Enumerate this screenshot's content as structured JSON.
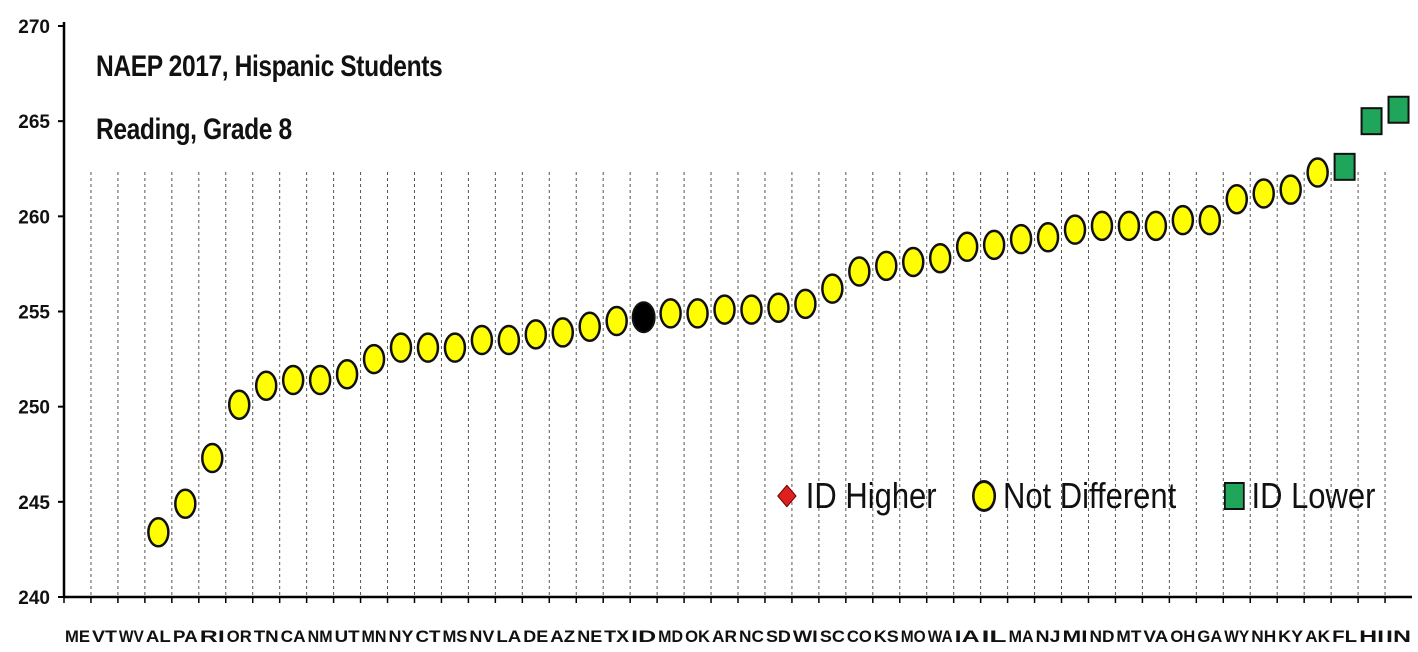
{
  "chart_data": {
    "type": "scatter",
    "title": "NAEP 2017, Hispanic Students",
    "subtitle": "Reading, Grade 8",
    "ylim": [
      240,
      270
    ],
    "y_ticks": [
      240,
      245,
      250,
      255,
      260,
      265,
      270
    ],
    "grid": "vertical dashed",
    "legend_placement": "bottom-right",
    "categories": [
      "ME",
      "VT",
      "WV",
      "AL",
      "PA",
      "RI",
      "OR",
      "TN",
      "CA",
      "NM",
      "UT",
      "MN",
      "NY",
      "CT",
      "MS",
      "NV",
      "LA",
      "DE",
      "AZ",
      "NE",
      "TX",
      "ID",
      "MD",
      "OK",
      "AR",
      "NC",
      "SD",
      "WI",
      "SC",
      "CO",
      "KS",
      "MO",
      "WA",
      "IA",
      "IL",
      "MA",
      "NJ",
      "MI",
      "ND",
      "MT",
      "VA",
      "OH",
      "GA",
      "WY",
      "NH",
      "KY",
      "AK",
      "FL",
      "HI",
      "IN"
    ],
    "values": [
      null,
      null,
      null,
      243.4,
      244.9,
      247.3,
      250.1,
      251.1,
      251.4,
      251.4,
      251.7,
      252.5,
      253.1,
      253.1,
      253.1,
      253.5,
      253.5,
      253.8,
      253.9,
      254.2,
      254.5,
      254.7,
      254.9,
      254.9,
      255.1,
      255.1,
      255.2,
      255.4,
      256.2,
      257.1,
      257.4,
      257.6,
      257.8,
      258.4,
      258.5,
      258.8,
      258.9,
      259.3,
      259.5,
      259.5,
      259.5,
      259.8,
      259.8,
      260.9,
      261.2,
      261.4,
      262.3,
      262.6,
      265.0,
      265.6
    ],
    "status": [
      "none",
      "none",
      "none",
      "Not Different",
      "Not Different",
      "Not Different",
      "Not Different",
      "Not Different",
      "Not Different",
      "Not Different",
      "Not Different",
      "Not Different",
      "Not Different",
      "Not Different",
      "Not Different",
      "Not Different",
      "Not Different",
      "Not Different",
      "Not Different",
      "Not Different",
      "Not Different",
      "focal",
      "Not Different",
      "Not Different",
      "Not Different",
      "Not Different",
      "Not Different",
      "Not Different",
      "Not Different",
      "Not Different",
      "Not Different",
      "Not Different",
      "Not Different",
      "Not Different",
      "Not Different",
      "Not Different",
      "Not Different",
      "Not Different",
      "Not Different",
      "Not Different",
      "Not Different",
      "Not Different",
      "Not Different",
      "Not Different",
      "Not Different",
      "Not Different",
      "Not Different",
      "ID Lower",
      "ID Lower",
      "ID Lower"
    ],
    "legend": [
      {
        "label": "ID Higher",
        "symbol": "diamond",
        "color": "#e02020"
      },
      {
        "label": "Not Different",
        "symbol": "circle",
        "color": "#ffff00"
      },
      {
        "label": "ID Lower",
        "symbol": "square",
        "color": "#1fa65a"
      }
    ],
    "colors": {
      "focal": "#000000",
      "axis": "#000000",
      "grid": "#555555"
    }
  }
}
